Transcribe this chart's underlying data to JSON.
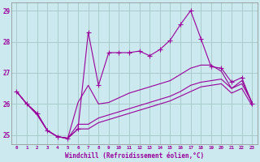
{
  "hours": [
    0,
    1,
    2,
    3,
    4,
    5,
    6,
    7,
    8,
    9,
    10,
    11,
    12,
    13,
    14,
    15,
    16,
    17,
    18,
    19,
    20,
    21,
    22,
    23
  ],
  "line_top": [
    26.4,
    26.0,
    25.7,
    25.15,
    24.95,
    24.9,
    25.2,
    28.3,
    26.6,
    27.65,
    27.65,
    27.65,
    27.7,
    27.55,
    27.75,
    28.05,
    28.55,
    29.0,
    28.1,
    27.2,
    27.15,
    26.7,
    26.85,
    26.0
  ],
  "line_mid1": [
    26.4,
    26.0,
    25.7,
    25.15,
    24.95,
    24.9,
    26.05,
    26.6,
    26.0,
    26.05,
    26.2,
    26.35,
    26.45,
    26.55,
    26.65,
    26.75,
    26.95,
    27.15,
    27.25,
    27.25,
    27.05,
    26.5,
    26.75,
    26.05
  ],
  "line_mid2": [
    26.4,
    26.0,
    25.7,
    25.15,
    24.95,
    24.9,
    25.35,
    25.35,
    25.55,
    25.65,
    25.75,
    25.85,
    25.95,
    26.05,
    26.15,
    26.25,
    26.4,
    26.6,
    26.7,
    26.75,
    26.8,
    26.5,
    26.65,
    26.05
  ],
  "line_bot": [
    26.4,
    26.0,
    25.65,
    25.15,
    24.95,
    24.9,
    25.2,
    25.2,
    25.4,
    25.5,
    25.6,
    25.7,
    25.8,
    25.9,
    26.0,
    26.1,
    26.25,
    26.4,
    26.55,
    26.6,
    26.65,
    26.35,
    26.5,
    25.95
  ],
  "line_color": "#990099",
  "bg_color": "#cce9f0",
  "grid_color": "#aacccc",
  "ylim": [
    24.7,
    29.25
  ],
  "xlim": [
    -0.5,
    23.5
  ],
  "yticks": [
    25,
    26,
    27,
    28,
    29
  ],
  "xlabel": "Windchill (Refroidissement éolien,°C)"
}
